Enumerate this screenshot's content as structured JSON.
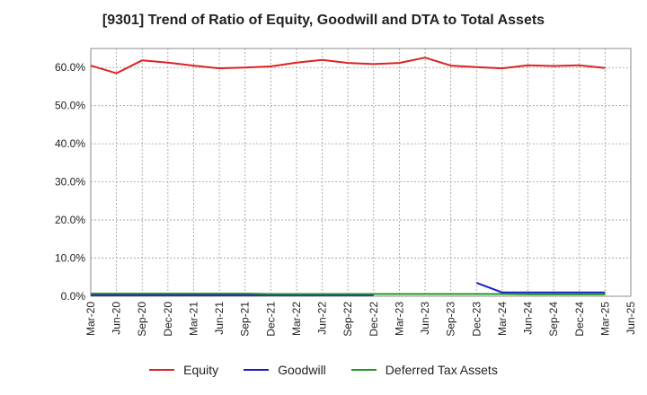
{
  "chart_data": {
    "type": "line",
    "title": "[9301]  Trend of Ratio of Equity, Goodwill and DTA to Total Assets",
    "xlabel": "",
    "ylabel": "",
    "ylim": [
      0,
      65
    ],
    "y_ticks": [
      0,
      10,
      20,
      30,
      40,
      50,
      60
    ],
    "y_tick_labels": [
      "0.0%",
      "10.0%",
      "20.0%",
      "30.0%",
      "40.0%",
      "50.0%",
      "60.0%"
    ],
    "grid": true,
    "legend_position": "bottom",
    "categories": [
      "Mar-20",
      "Jun-20",
      "Sep-20",
      "Dec-20",
      "Mar-21",
      "Jun-21",
      "Sep-21",
      "Dec-21",
      "Mar-22",
      "Jun-22",
      "Sep-22",
      "Dec-22",
      "Mar-23",
      "Jun-23",
      "Sep-23",
      "Dec-23",
      "Mar-24",
      "Jun-24",
      "Sep-24",
      "Dec-24",
      "Mar-25",
      "Jun-25"
    ],
    "series": [
      {
        "name": "Equity",
        "color": "#dd2222",
        "values": [
          60.5,
          58.5,
          61.9,
          61.3,
          60.5,
          59.8,
          60.0,
          60.3,
          61.3,
          62.0,
          61.2,
          60.9,
          61.2,
          62.6,
          60.5,
          60.1,
          59.8,
          60.6,
          60.4,
          60.6,
          59.9,
          null
        ]
      },
      {
        "name": "Goodwill",
        "color": "#1a1acc",
        "values": [
          0.3,
          0.3,
          0.3,
          0.3,
          0.3,
          0.3,
          0.3,
          0.3,
          0.3,
          0.3,
          0.3,
          0.3,
          null,
          null,
          null,
          3.5,
          1.0,
          1.0,
          1.0,
          1.0,
          1.0,
          null
        ]
      },
      {
        "name": "Deferred Tax Assets",
        "color": "#229922",
        "values": [
          0.7,
          0.7,
          0.7,
          0.7,
          0.7,
          0.7,
          0.7,
          0.6,
          0.6,
          0.6,
          0.6,
          0.6,
          0.6,
          0.6,
          0.6,
          0.6,
          0.6,
          0.5,
          0.5,
          0.5,
          0.5,
          null
        ]
      }
    ]
  }
}
